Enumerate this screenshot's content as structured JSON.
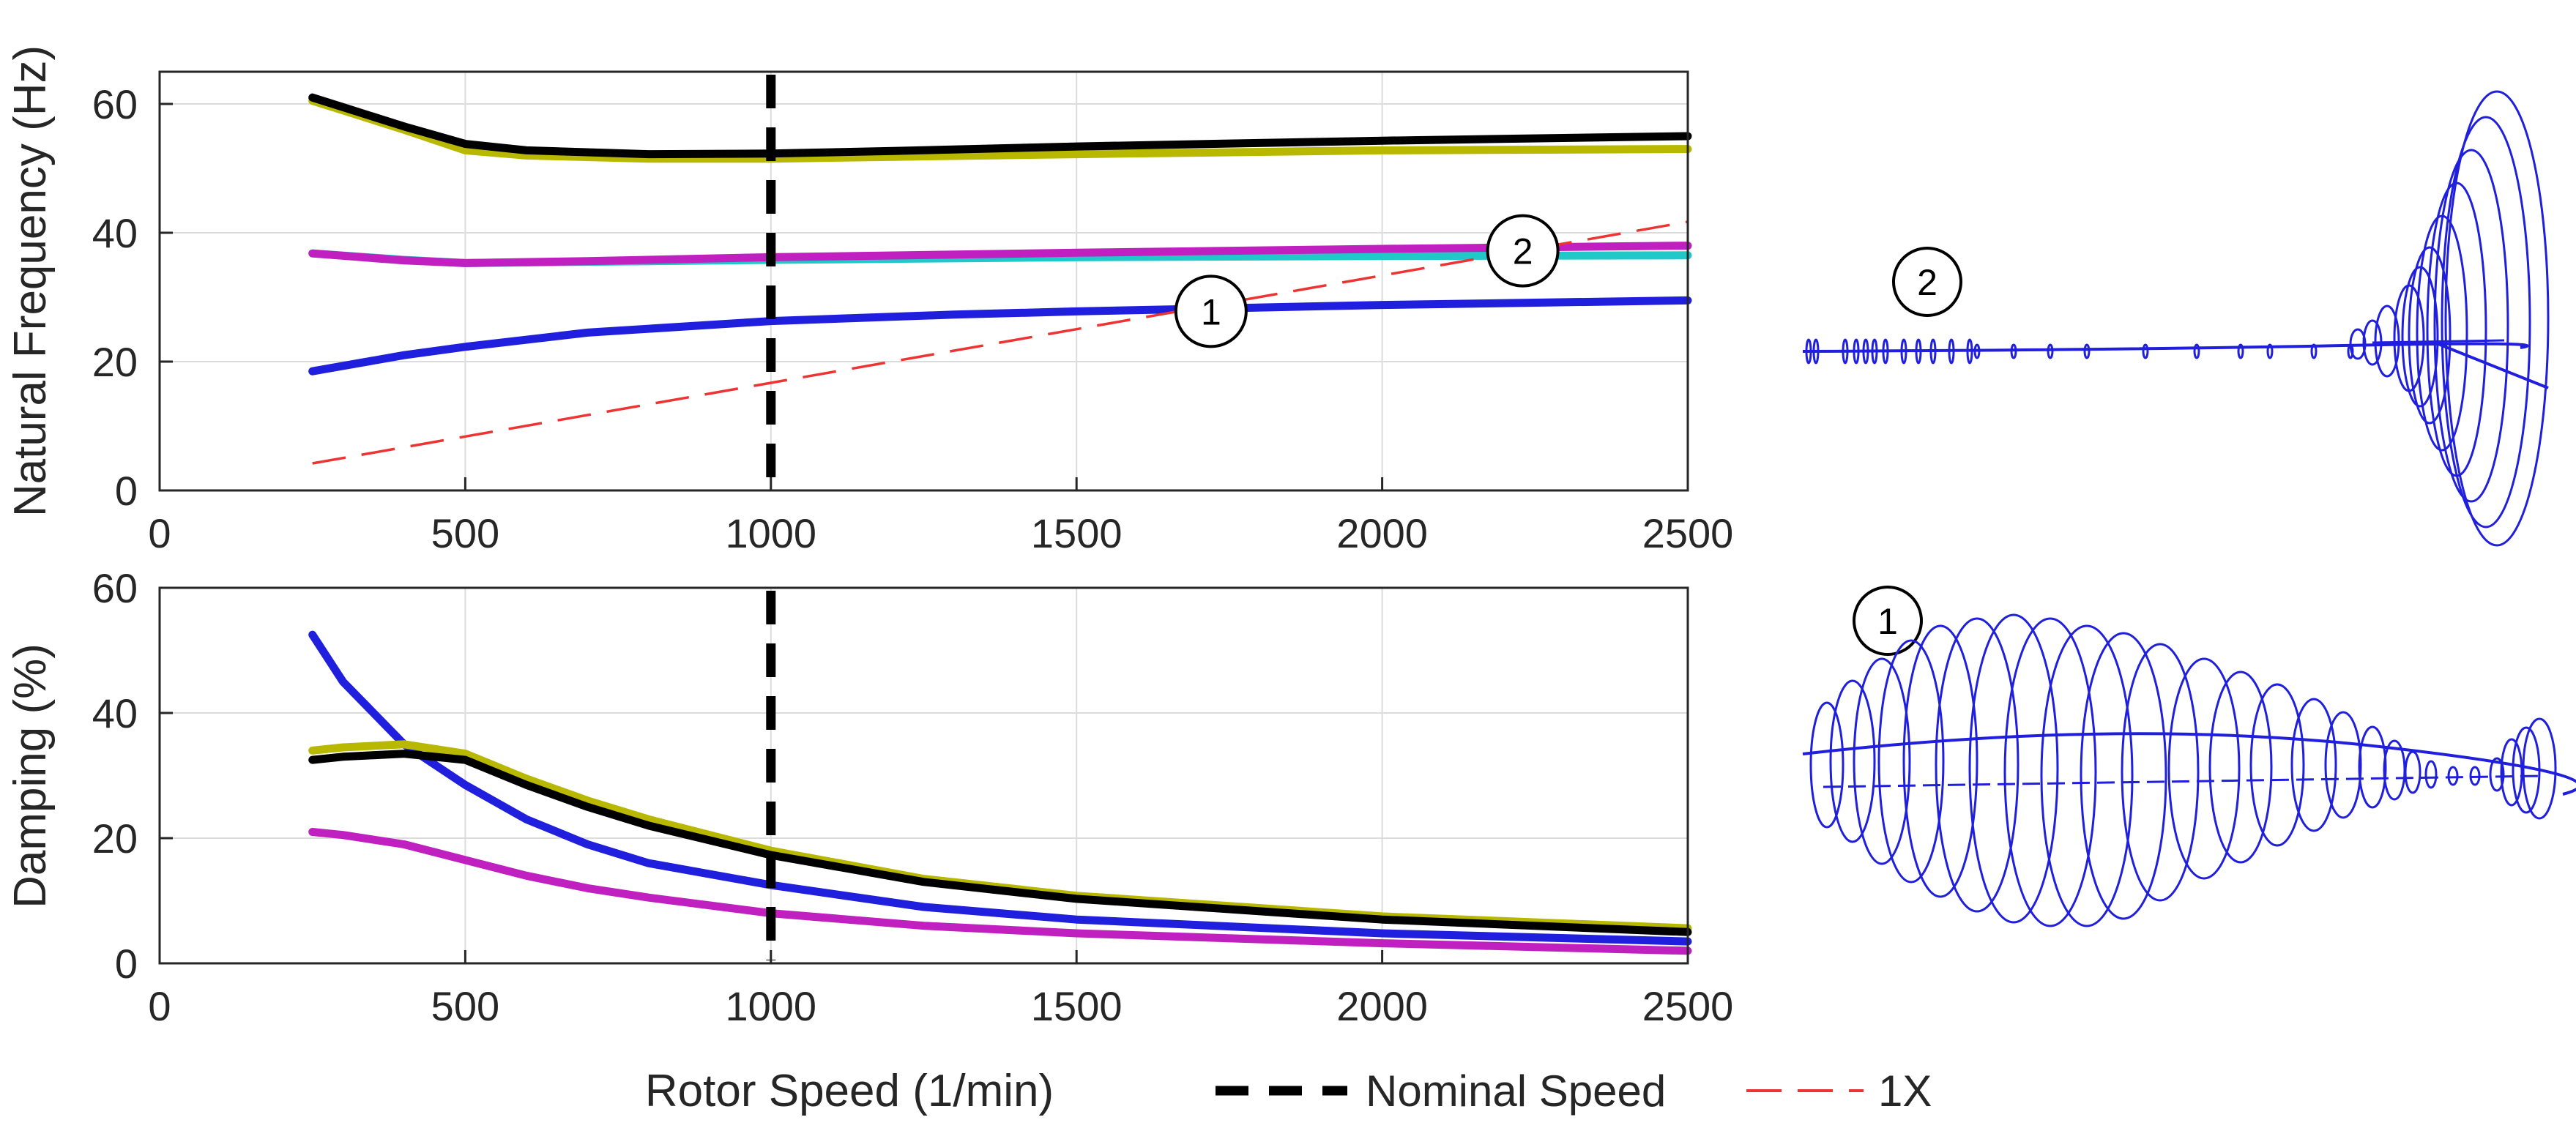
{
  "chart_data": [
    {
      "type": "line",
      "ylabel": "Natural Frequency (Hz)",
      "xlabel": "",
      "xlim": [
        0,
        2500
      ],
      "ylim": [
        0,
        65
      ],
      "xticks": [
        0,
        500,
        1000,
        1500,
        2000,
        2500
      ],
      "xtick_labels": [
        "0",
        "500",
        "1000",
        "1500",
        "2000",
        "2500"
      ],
      "yticks": [
        0,
        20,
        40,
        60
      ],
      "ytick_labels": [
        "0",
        "20",
        "40",
        "60"
      ],
      "grid": true,
      "series": [
        {
          "color": "#b8b800",
          "x": [
            250,
            300,
            400,
            500,
            600,
            800,
            1000,
            1200,
            1500,
            2000,
            2500
          ],
          "y": [
            60.5,
            59,
            56,
            52.8,
            52,
            51.5,
            51.5,
            51.8,
            52.2,
            52.8,
            53
          ]
        },
        {
          "color": "#000000",
          "x": [
            250,
            300,
            400,
            500,
            600,
            800,
            1000,
            1200,
            1500,
            2000,
            2500
          ],
          "y": [
            61,
            59.5,
            56.5,
            53.8,
            52.8,
            52.2,
            52.3,
            52.7,
            53.4,
            54.3,
            55
          ]
        },
        {
          "color": "#20c8c8",
          "x": [
            250,
            400,
            500,
            700,
            1000,
            1500,
            2000,
            2500
          ],
          "y": [
            36.8,
            35.8,
            35.3,
            35.5,
            35.8,
            36.2,
            36.4,
            36.5
          ]
        },
        {
          "color": "#c020c0",
          "x": [
            250,
            400,
            500,
            700,
            1000,
            1500,
            2000,
            2500
          ],
          "y": [
            36.8,
            35.7,
            35.3,
            35.6,
            36.2,
            36.9,
            37.5,
            38
          ]
        },
        {
          "color": "#1f1fdd",
          "x": [
            250,
            400,
            500,
            700,
            1000,
            1300,
            1500,
            2000,
            2500
          ],
          "y": [
            18.5,
            21,
            22.3,
            24.5,
            26.3,
            27.3,
            27.8,
            28.8,
            29.5
          ]
        },
        {
          "color": "#ee3333",
          "dashed": true,
          "x": [
            250,
            2500
          ],
          "y": [
            4.2,
            41.7
          ]
        }
      ],
      "vline": {
        "x": 1000,
        "color": "#000000",
        "dashed": true
      },
      "annotations": [
        {
          "label": "1",
          "x": 1720,
          "y": 27.8
        },
        {
          "label": "2",
          "x": 2230,
          "y": 37.2
        }
      ]
    },
    {
      "type": "line",
      "ylabel": "Damping (%)",
      "xlabel": "Rotor Speed (1/min)",
      "xlim": [
        0,
        2500
      ],
      "ylim": [
        0,
        60
      ],
      "xticks": [
        0,
        500,
        1000,
        1500,
        2000,
        2500
      ],
      "xtick_labels": [
        "0",
        "500",
        "1000",
        "1500",
        "2000",
        "2500"
      ],
      "yticks": [
        0,
        20,
        40,
        60
      ],
      "ytick_labels": [
        "0",
        "20",
        "40",
        "60"
      ],
      "grid": true,
      "series": [
        {
          "color": "#1f1fdd",
          "x": [
            250,
            300,
            400,
            500,
            600,
            700,
            800,
            1000,
            1250,
            1500,
            2000,
            2500
          ],
          "y": [
            52.5,
            45,
            35,
            28.5,
            23,
            19,
            16,
            12.5,
            9,
            7,
            4.8,
            3.5
          ]
        },
        {
          "color": "#c020c0",
          "x": [
            250,
            300,
            400,
            500,
            600,
            700,
            800,
            1000,
            1250,
            1500,
            2000,
            2500
          ],
          "y": [
            21,
            20.5,
            19,
            16.5,
            14,
            12,
            10.5,
            8,
            6,
            4.8,
            3.2,
            2
          ]
        },
        {
          "color": "#b8b800",
          "x": [
            250,
            300,
            400,
            500,
            600,
            700,
            800,
            1000,
            1250,
            1500,
            2000,
            2500
          ],
          "y": [
            34,
            34.5,
            35,
            33.5,
            29.5,
            26,
            23,
            18,
            13.5,
            10.8,
            7.5,
            5.6
          ]
        },
        {
          "color": "#000000",
          "x": [
            250,
            300,
            400,
            500,
            600,
            700,
            800,
            1000,
            1250,
            1500,
            2000,
            2500
          ],
          "y": [
            32.5,
            33,
            33.5,
            32.5,
            28.5,
            25,
            22,
            17.3,
            13,
            10.3,
            7,
            5
          ]
        }
      ],
      "vline": {
        "x": 1000,
        "color": "#000000",
        "dashed": true
      }
    }
  ],
  "legend": [
    {
      "label": "Nominal Speed",
      "color": "#000000",
      "style": "thick-dashed"
    },
    {
      "label": "1X",
      "color": "#ee3333",
      "style": "thin-dashed"
    }
  ],
  "mode_shapes": [
    {
      "label": "2",
      "color": "#1f1fdd"
    },
    {
      "label": "1",
      "color": "#1f1fdd"
    }
  ]
}
